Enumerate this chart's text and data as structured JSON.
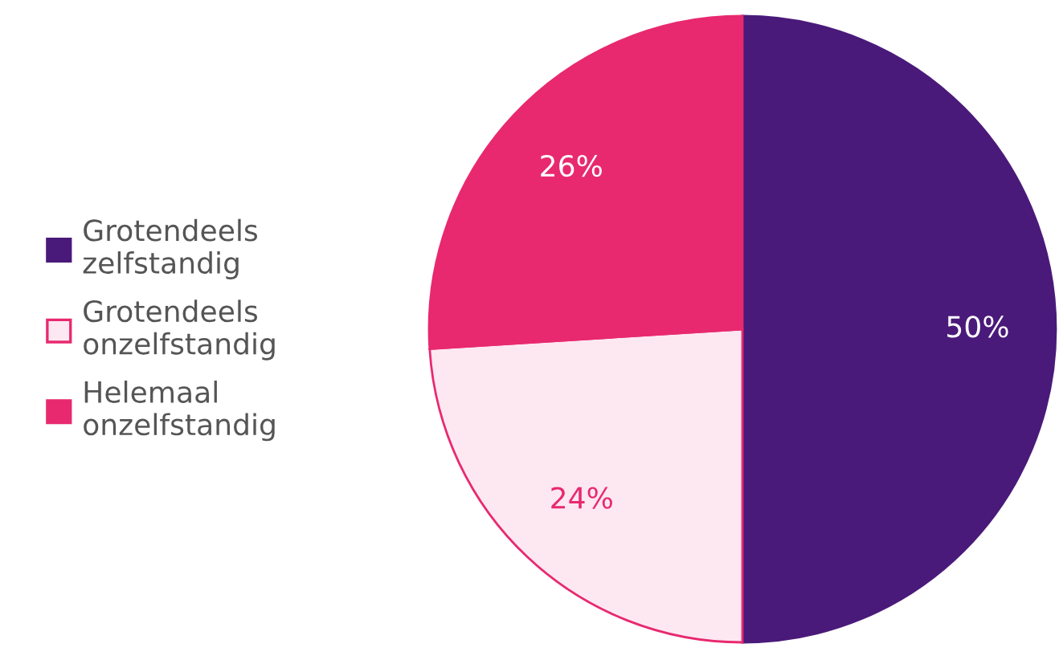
{
  "chart_data": {
    "type": "pie",
    "categories": [
      "Grotendeels\nzelfstandig",
      "Grotendeels\nonzelfstandig",
      "Helemaal\nonzelfstandig"
    ],
    "values": [
      50,
      24,
      26
    ],
    "colors": [
      "#4a1a7a",
      "#fde8f2",
      "#e8296f"
    ],
    "value_labels": [
      "50%",
      "24%",
      "26%"
    ],
    "legend": "left"
  }
}
